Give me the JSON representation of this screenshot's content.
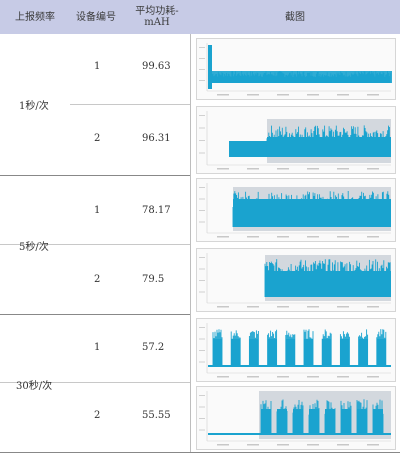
{
  "header": {
    "frequency": "上报频率",
    "device_no": "设备编号",
    "avg_power": "平均功耗-mAH",
    "screenshot": "截图"
  },
  "groups": [
    {
      "frequency": "1秒/次",
      "rows": [
        {
          "device": "1",
          "avg": "99.63"
        },
        {
          "device": "2",
          "avg": "96.31"
        }
      ]
    },
    {
      "frequency": "5秒/次",
      "rows": [
        {
          "device": "1",
          "avg": "78.17"
        },
        {
          "device": "2",
          "avg": "79.5"
        }
      ]
    },
    {
      "frequency": "30秒/次",
      "rows": [
        {
          "device": "1",
          "avg": "57.2"
        },
        {
          "device": "2",
          "avg": "55.55"
        }
      ]
    }
  ],
  "colors": {
    "header_bg": "#c7cbe6",
    "trace": "#1aa3cf",
    "highlight": "#d3d8de"
  }
}
